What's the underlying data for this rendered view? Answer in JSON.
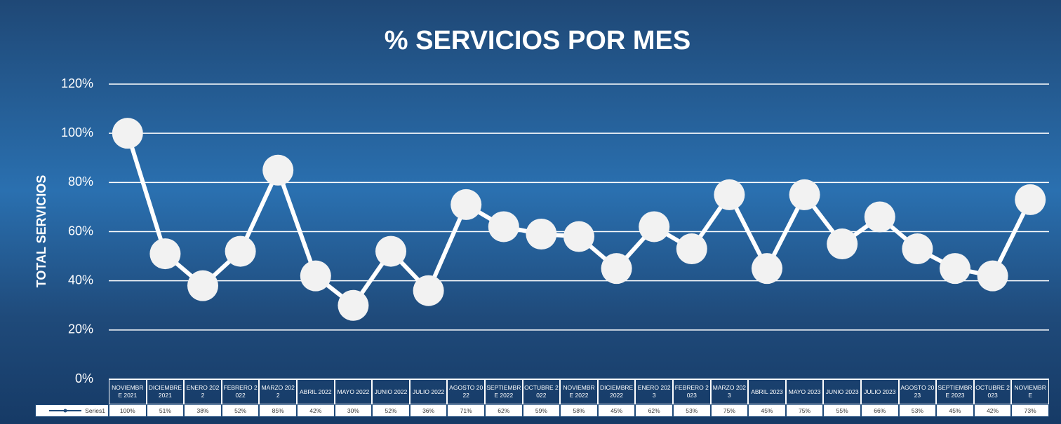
{
  "chart_data": {
    "type": "line",
    "title": "% SERVICIOS POR MES",
    "y_label": "TOTAL SERVICIOS",
    "categories": [
      "NOVIEMBRE 2021",
      "DICIEMBRE 2021",
      "ENERO 2022",
      "FEBRERO 2022",
      "MARZO 2022",
      "ABRIL 2022",
      "MAYO 2022",
      "JUNIO 2022",
      "JULIO 2022",
      "AGOSTO 2022",
      "SEPTIEMBRE 2022",
      "OCTUBRE 2022",
      "NOVIEMBRE 2022",
      "DICIEMBRE 2022",
      "ENERO 2023",
      "FEBRERO 2023",
      "MARZO 2023",
      "ABRIL 2023",
      "MAYO 2023",
      "JUNIO 2023",
      "JULIO 2023",
      "AGOSTO 2023",
      "SEPTIEMBRE 2023",
      "OCTUBRE 2023",
      "NOVIEMBRE"
    ],
    "series": [
      {
        "name": "Series1",
        "color": "#ffffff",
        "values": [
          100,
          51,
          38,
          52,
          85,
          42,
          30,
          52,
          36,
          71,
          62,
          59,
          58,
          45,
          62,
          53,
          75,
          45,
          75,
          55,
          66,
          53,
          45,
          42,
          73
        ],
        "value_labels": [
          "100%",
          "51%",
          "38%",
          "52%",
          "85%",
          "42%",
          "30%",
          "52%",
          "36%",
          "71%",
          "62%",
          "59%",
          "58%",
          "45%",
          "62%",
          "53%",
          "75%",
          "45%",
          "75%",
          "55%",
          "66%",
          "53%",
          "45%",
          "42%",
          "73%"
        ]
      }
    ],
    "ylim": [
      0,
      120
    ],
    "yticks": [
      {
        "value": 0,
        "label": "0%"
      },
      {
        "value": 20,
        "label": "20%"
      },
      {
        "value": 40,
        "label": "40%"
      },
      {
        "value": 60,
        "label": "60%"
      },
      {
        "value": 80,
        "label": "80%"
      },
      {
        "value": 100,
        "label": "100%"
      },
      {
        "value": 120,
        "label": "120%"
      }
    ],
    "grid": true
  }
}
